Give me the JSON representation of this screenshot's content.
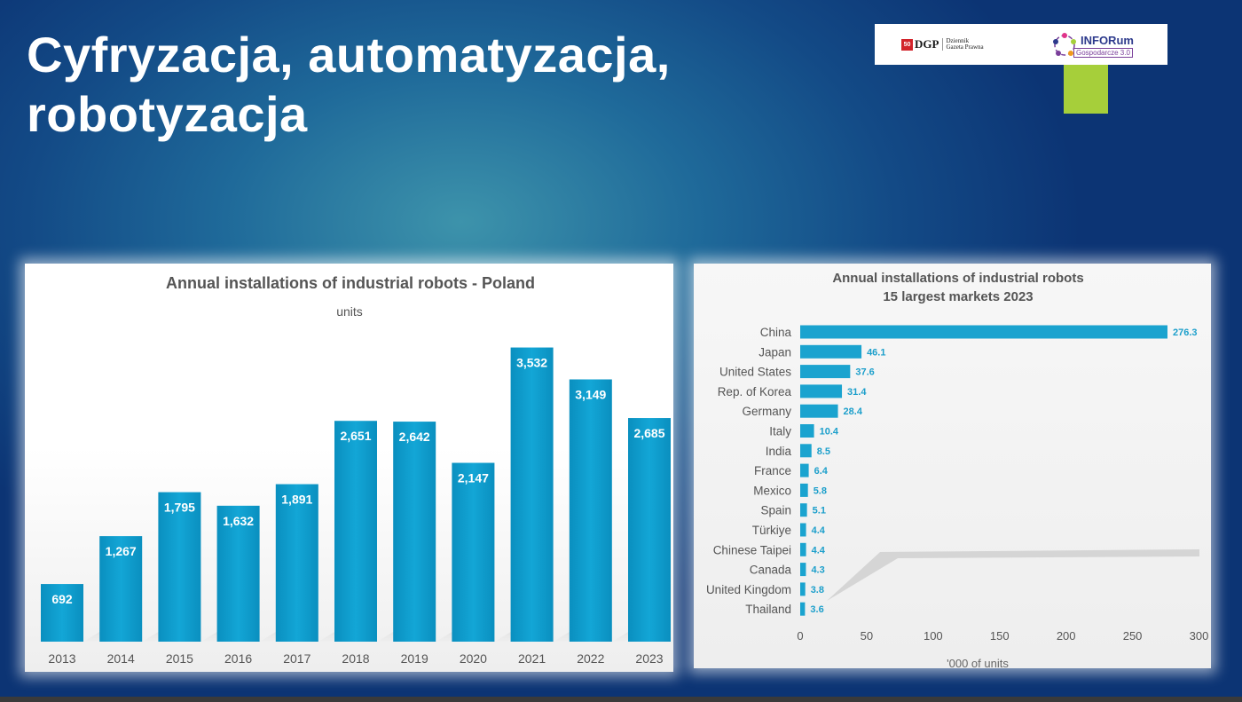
{
  "slide": {
    "title_line1": "Cyfryzacja, automatyzacja,",
    "title_line2": "robotyzacja"
  },
  "logos": {
    "dgp": {
      "mark": "50",
      "name": "DGP",
      "sub_line1": "Dziennik",
      "sub_line2": "Gazeta Prawna"
    },
    "inforum": {
      "name": "INFORum",
      "sub": "Gospodarcze 3.0"
    }
  },
  "colors": {
    "bar": "#009ccc",
    "bar_right": "#1aa3cf",
    "label_right": "#1c9fcb",
    "logo_accent": "#a6cf3a"
  },
  "chart_data": [
    {
      "type": "bar",
      "title": "Annual installations of industrial robots - Poland",
      "subtitle": "units",
      "categories": [
        "2013",
        "2014",
        "2015",
        "2016",
        "2017",
        "2018",
        "2019",
        "2020",
        "2021",
        "2022",
        "2023"
      ],
      "values": [
        692,
        1267,
        1795,
        1632,
        1891,
        2651,
        2642,
        2147,
        3532,
        3149,
        2685
      ],
      "value_labels": [
        "692",
        "1,267",
        "1,795",
        "1,632",
        "1,891",
        "2,651",
        "2,642",
        "2,147",
        "3,532",
        "3,149",
        "2,685"
      ],
      "ylim": [
        0,
        4000
      ],
      "grid": false
    },
    {
      "type": "bar",
      "orientation": "horizontal",
      "title_line1": "Annual installations of industrial robots",
      "title_line2": "15 largest markets 2023",
      "categories": [
        "China",
        "Japan",
        "United States",
        "Rep. of Korea",
        "Germany",
        "Italy",
        "India",
        "France",
        "Mexico",
        "Spain",
        "Türkiye",
        "Chinese Taipei",
        "Canada",
        "United Kingdom",
        "Thailand"
      ],
      "values": [
        276.3,
        46.1,
        37.6,
        31.4,
        28.4,
        10.4,
        8.5,
        6.4,
        5.8,
        5.1,
        4.4,
        4.4,
        4.3,
        3.8,
        3.6
      ],
      "value_labels": [
        "276.3",
        "46.1",
        "37.6",
        "31.4",
        "28.4",
        "10.4",
        "8.5",
        "6.4",
        "5.8",
        "5.1",
        "4.4",
        "4.4",
        "4.3",
        "3.8",
        "3.6"
      ],
      "xticks": [
        "0",
        "50",
        "100",
        "150",
        "200",
        "250",
        "300"
      ],
      "xlim": [
        0,
        300
      ],
      "xlabel": "'000 of units",
      "grid": false
    }
  ]
}
